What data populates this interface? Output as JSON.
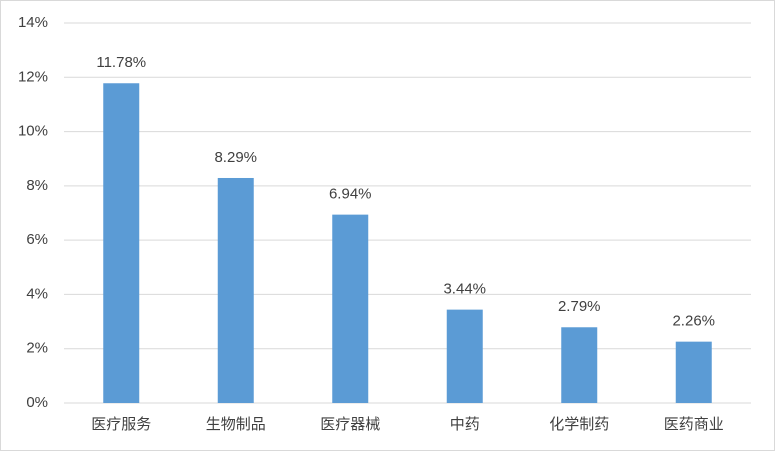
{
  "chart_data": {
    "type": "bar",
    "categories": [
      "医疗服务",
      "生物制品",
      "医疗器械",
      "中药",
      "化学制药",
      "医药商业"
    ],
    "values": [
      11.78,
      8.29,
      6.94,
      3.44,
      2.79,
      2.26
    ],
    "value_labels": [
      "11.78%",
      "8.29%",
      "6.94%",
      "3.44%",
      "2.79%",
      "2.26%"
    ],
    "color": "#5b9bd5",
    "ylim": [
      0,
      14
    ],
    "yticks": [
      {
        "value": 0,
        "label": "0%"
      },
      {
        "value": 2,
        "label": "2%"
      },
      {
        "value": 4,
        "label": "4%"
      },
      {
        "value": 6,
        "label": "6%"
      },
      {
        "value": 8,
        "label": "8%"
      },
      {
        "value": 10,
        "label": "10%"
      },
      {
        "value": 12,
        "label": "12%"
      },
      {
        "value": 14,
        "label": "14%"
      }
    ],
    "grid": true
  }
}
